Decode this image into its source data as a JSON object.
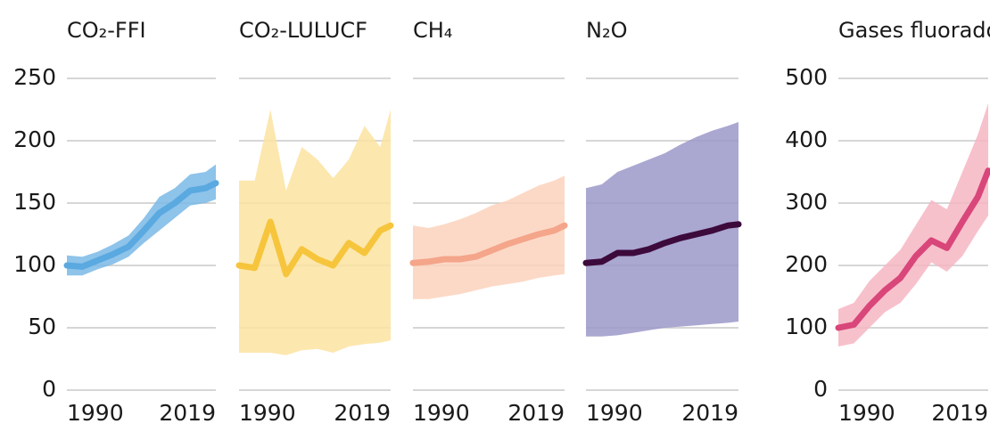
{
  "chart_data": [
    {
      "type": "line",
      "title": "CO₂-FFI",
      "color": "#5aa9e0",
      "band_color": "#7ab8e6",
      "x": [
        1990,
        1993,
        1996,
        1999,
        2002,
        2005,
        2008,
        2011,
        2014,
        2017,
        2019
      ],
      "values": [
        100,
        99,
        104,
        109,
        115,
        128,
        142,
        150,
        160,
        162,
        166
      ],
      "low": [
        92,
        92,
        97,
        101,
        107,
        118,
        128,
        138,
        148,
        150,
        153
      ],
      "high": [
        108,
        107,
        111,
        117,
        124,
        138,
        155,
        162,
        173,
        175,
        181
      ],
      "xlim": [
        1990,
        2019
      ],
      "xticks": [
        1990,
        2019
      ],
      "ylim": [
        0,
        250
      ],
      "yticks": [
        0,
        50,
        100,
        150,
        200,
        250
      ],
      "grid": true
    },
    {
      "type": "line",
      "title": "CO₂-LULUCF",
      "color": "#f6c53c",
      "band_color": "#fbe3a0",
      "x": [
        1990,
        1993,
        1996,
        1999,
        2002,
        2005,
        2008,
        2011,
        2014,
        2017,
        2019
      ],
      "values": [
        100,
        98,
        135,
        93,
        113,
        105,
        100,
        118,
        110,
        128,
        132
      ],
      "low": [
        30,
        30,
        30,
        28,
        32,
        33,
        30,
        35,
        37,
        38,
        40
      ],
      "high": [
        168,
        168,
        225,
        160,
        195,
        185,
        170,
        185,
        212,
        195,
        225
      ],
      "xlim": [
        1990,
        2019
      ],
      "xticks": [
        1990,
        2019
      ],
      "sharey": true,
      "grid": true
    },
    {
      "type": "line",
      "title": "CH₄",
      "color": "#f4a58a",
      "band_color": "#fcd2bc",
      "x": [
        1990,
        1993,
        1996,
        1999,
        2002,
        2005,
        2008,
        2011,
        2014,
        2017,
        2019
      ],
      "values": [
        102,
        103,
        105,
        105,
        107,
        112,
        117,
        121,
        125,
        128,
        132
      ],
      "low": [
        73,
        73,
        75,
        77,
        80,
        83,
        85,
        87,
        90,
        92,
        93
      ],
      "high": [
        132,
        130,
        133,
        137,
        142,
        148,
        152,
        158,
        164,
        168,
        172
      ],
      "xlim": [
        1990,
        2019
      ],
      "xticks": [
        1990,
        2019
      ],
      "sharey": true,
      "grid": true
    },
    {
      "type": "line",
      "title": "N₂O",
      "color": "#3d0a3c",
      "band_color": "#9b98c9",
      "x": [
        1990,
        1993,
        1996,
        1999,
        2002,
        2005,
        2008,
        2011,
        2014,
        2017,
        2019
      ],
      "values": [
        102,
        103,
        110,
        110,
        113,
        118,
        122,
        125,
        128,
        132,
        133
      ],
      "low": [
        43,
        43,
        44,
        46,
        48,
        50,
        51,
        52,
        53,
        54,
        55
      ],
      "high": [
        162,
        165,
        175,
        180,
        185,
        190,
        197,
        203,
        208,
        212,
        215
      ],
      "xlim": [
        1990,
        2019
      ],
      "xticks": [
        1990,
        2019
      ],
      "sharey": true,
      "grid": true
    },
    {
      "type": "line",
      "title": "Gases fluorados",
      "color": "#d9467a",
      "band_color": "#f6b6c3",
      "x": [
        1990,
        1993,
        1996,
        1999,
        2002,
        2005,
        2008,
        2011,
        2014,
        2017,
        2019
      ],
      "values": [
        100,
        105,
        135,
        160,
        180,
        215,
        240,
        228,
        270,
        310,
        352
      ],
      "low": [
        70,
        75,
        100,
        125,
        140,
        170,
        205,
        190,
        215,
        255,
        280
      ],
      "high": [
        130,
        140,
        175,
        200,
        225,
        265,
        305,
        290,
        350,
        410,
        460
      ],
      "xlim": [
        1990,
        2019
      ],
      "xticks": [
        1990,
        2019
      ],
      "ylim": [
        0,
        500
      ],
      "yticks": [
        0,
        100,
        200,
        300,
        400,
        500
      ],
      "grid": true
    }
  ]
}
